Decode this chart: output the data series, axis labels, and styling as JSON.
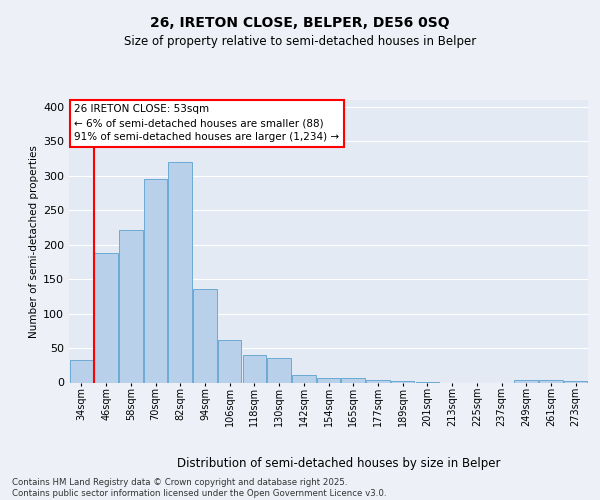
{
  "title1": "26, IRETON CLOSE, BELPER, DE56 0SQ",
  "title2": "Size of property relative to semi-detached houses in Belper",
  "xlabel": "Distribution of semi-detached houses by size in Belper",
  "ylabel": "Number of semi-detached properties",
  "categories": [
    "34sqm",
    "46sqm",
    "58sqm",
    "70sqm",
    "82sqm",
    "94sqm",
    "106sqm",
    "118sqm",
    "130sqm",
    "142sqm",
    "154sqm",
    "165sqm",
    "177sqm",
    "189sqm",
    "201sqm",
    "213sqm",
    "225sqm",
    "237sqm",
    "249sqm",
    "261sqm",
    "273sqm"
  ],
  "bar_values": [
    33,
    188,
    222,
    295,
    320,
    135,
    62,
    40,
    35,
    11,
    7,
    6,
    4,
    2,
    1,
    0,
    0,
    0,
    4,
    3,
    2
  ],
  "bar_color": "#b8d0ea",
  "bar_edge_color": "#6aaad4",
  "red_line_x": 0.525,
  "annotation_title": "26 IRETON CLOSE: 53sqm",
  "annotation_line1": "← 6% of semi-detached houses are smaller (88)",
  "annotation_line2": "91% of semi-detached houses are larger (1,234) →",
  "ylim_max": 410,
  "yticks": [
    0,
    50,
    100,
    150,
    200,
    250,
    300,
    350,
    400
  ],
  "footer1": "Contains HM Land Registry data © Crown copyright and database right 2025.",
  "footer2": "Contains public sector information licensed under the Open Government Licence v3.0.",
  "background_color": "#edf1f7",
  "plot_background": "#e4eaf4",
  "grid_color": "#ffffff",
  "title1_fontsize": 10,
  "title2_fontsize": 8.5,
  "xlabel_fontsize": 8.5,
  "ylabel_fontsize": 7.5,
  "tick_fontsize": 7,
  "annotation_fontsize": 7.5,
  "footer_fontsize": 6.2
}
